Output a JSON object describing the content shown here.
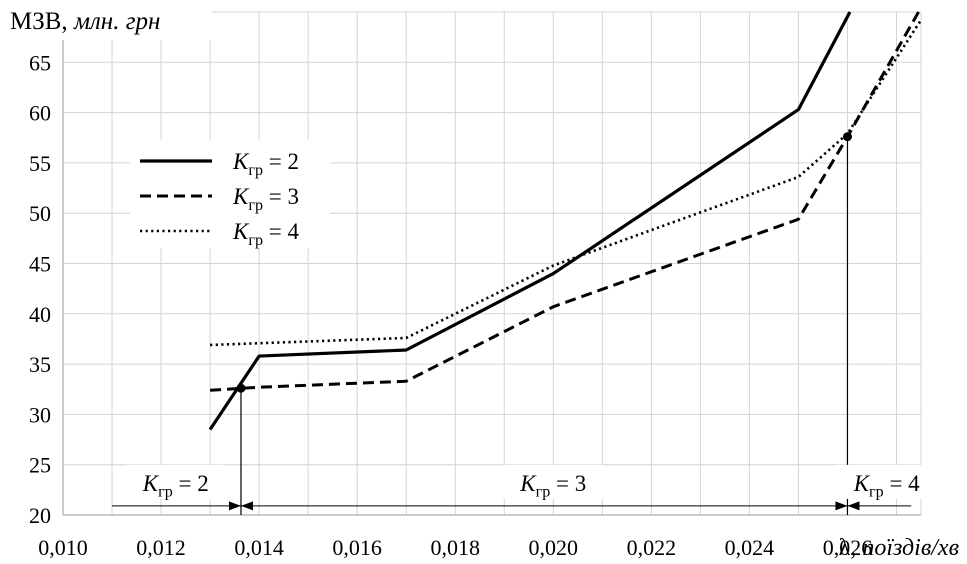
{
  "chart_data": {
    "type": "line",
    "ylabel_main": "МЗВ,",
    "ylabel_unit": "млн. грн",
    "xlabel_main": "λ,",
    "xlabel_unit": "поїздів/хв",
    "xlim": [
      0.01,
      0.0275
    ],
    "ylim": [
      20,
      70
    ],
    "xticks": [
      "0,010",
      "0,012",
      "0,014",
      "0,016",
      "0,018",
      "0,020",
      "0,022",
      "0,024",
      "0,026"
    ],
    "xtick_values": [
      0.01,
      0.012,
      0.014,
      0.016,
      0.018,
      0.02,
      0.022,
      0.024,
      0.026
    ],
    "yticks": [
      "20",
      "25",
      "30",
      "35",
      "40",
      "45",
      "50",
      "55",
      "60",
      "65"
    ],
    "ytick_values": [
      20,
      25,
      30,
      35,
      40,
      45,
      50,
      55,
      60,
      65
    ],
    "grid": true,
    "legend_position": "upper-left",
    "series": [
      {
        "name": "K",
        "subscript": "гр",
        "suffix": " = 2",
        "style": "solid",
        "x": [
          0.013,
          0.014,
          0.017,
          0.02,
          0.025,
          0.02605
        ],
        "y": [
          28.5,
          35.8,
          36.4,
          44.0,
          60.3,
          70.0
        ]
      },
      {
        "name": "K",
        "subscript": "гр",
        "suffix": " = 3",
        "style": "dashed",
        "x": [
          0.013,
          0.014,
          0.017,
          0.02,
          0.025,
          0.026,
          0.02745
        ],
        "y": [
          32.4,
          32.7,
          33.3,
          40.7,
          49.4,
          57.6,
          70.0
        ]
      },
      {
        "name": "K",
        "subscript": "гр",
        "suffix": " = 4",
        "style": "dotted",
        "x": [
          0.013,
          0.017,
          0.02,
          0.025,
          0.026,
          0.0275
        ],
        "y": [
          36.9,
          37.6,
          44.8,
          53.6,
          57.9,
          69.2
        ]
      }
    ],
    "intersections": [
      {
        "x": 0.01363,
        "y": 32.6
      },
      {
        "x": 0.026,
        "y": 57.6
      }
    ],
    "zones": [
      {
        "name": "K",
        "subscript": "гр",
        "suffix": " = 2",
        "from": 0.011,
        "to": 0.01363,
        "label_x": 0.0123
      },
      {
        "name": "K",
        "subscript": "гр",
        "suffix": " = 3",
        "from": 0.01363,
        "to": 0.026,
        "label_x": 0.02
      },
      {
        "name": "K",
        "subscript": "гр",
        "suffix": " = 4",
        "from": 0.026,
        "to": 0.0273,
        "label_x": 0.0268
      }
    ],
    "zone_y": 23.0
  }
}
